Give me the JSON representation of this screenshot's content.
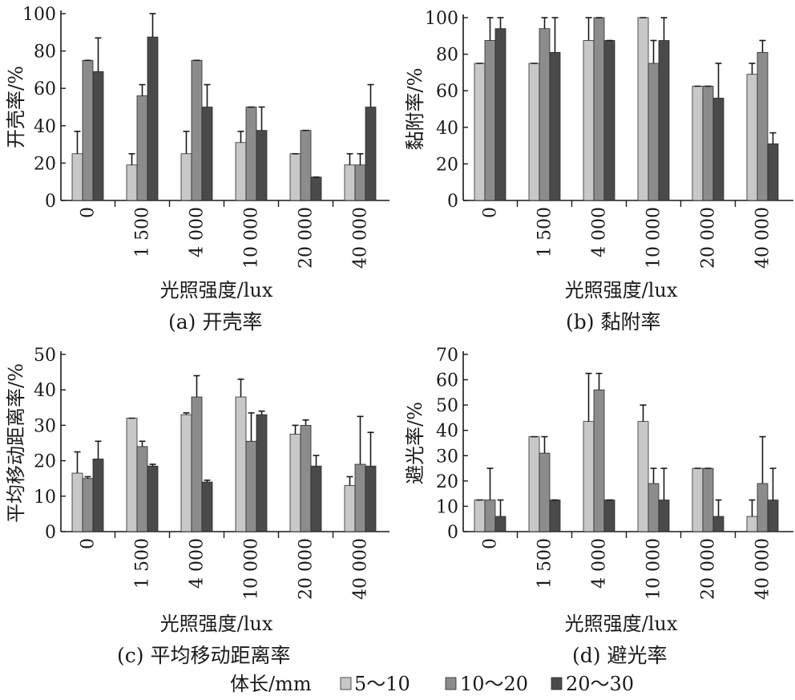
{
  "colors": [
    "#c8c8c8",
    "#8c8c8c",
    "#4a4a4a"
  ],
  "legend": {
    "title": "体长/mm",
    "items": [
      "5～10",
      "10～20",
      "20～30"
    ]
  },
  "chart_data": [
    {
      "type": "bar",
      "caption": "(a)  开壳率",
      "xlabel": "光照强度/lux",
      "ylabel": "开壳率/%",
      "categories": [
        "0",
        "1 500",
        "4 000",
        "10 000",
        "20 000",
        "40 000"
      ],
      "yticks": [
        "0",
        "20",
        "40",
        "60",
        "80",
        "100"
      ],
      "ylim": [
        0,
        100
      ],
      "series": [
        {
          "name": "5～10",
          "values": [
            25,
            19,
            25,
            31,
            25,
            19
          ],
          "errors": [
            12,
            6,
            12,
            6,
            0,
            6
          ]
        },
        {
          "name": "10～20",
          "values": [
            75,
            56,
            75,
            50,
            37.5,
            19
          ],
          "errors": [
            0,
            6,
            0,
            0,
            0,
            6
          ]
        },
        {
          "name": "20～30",
          "values": [
            69,
            87.5,
            50,
            37.5,
            12.5,
            50
          ],
          "errors": [
            18,
            12.5,
            12,
            12.5,
            0,
            12
          ]
        }
      ]
    },
    {
      "type": "bar",
      "caption": "(b)  黏附率",
      "xlabel": "光照强度/lux",
      "ylabel": "黏附率/%",
      "categories": [
        "0",
        "1 500",
        "4 000",
        "10 000",
        "20 000",
        "40 000"
      ],
      "yticks": [
        "0",
        "20",
        "40",
        "60",
        "80",
        "100"
      ],
      "ylim": [
        0,
        100
      ],
      "series": [
        {
          "name": "5～10",
          "values": [
            75,
            75,
            87.5,
            100,
            62.5,
            69
          ],
          "errors": [
            0,
            0,
            12.5,
            0,
            0,
            6
          ]
        },
        {
          "name": "10～20",
          "values": [
            87.5,
            94,
            100,
            75,
            62.5,
            81
          ],
          "errors": [
            12.5,
            6,
            0,
            12.5,
            0,
            6.5
          ]
        },
        {
          "name": "20～30",
          "values": [
            94,
            81,
            87.5,
            87.5,
            56,
            31
          ],
          "errors": [
            6,
            19,
            0,
            12.5,
            19,
            6
          ]
        }
      ]
    },
    {
      "type": "bar",
      "caption": "(c) 平均移动距离率",
      "xlabel": "光照强度/lux",
      "ylabel": "平均移动距离率/%",
      "categories": [
        "0",
        "1 500",
        "4 000",
        "10 000",
        "20 000",
        "40 000"
      ],
      "yticks": [
        "0",
        "10",
        "20",
        "30",
        "40",
        "50"
      ],
      "ylim": [
        0,
        50
      ],
      "series": [
        {
          "name": "5～10",
          "values": [
            16.5,
            32,
            33,
            38,
            27.5,
            13
          ],
          "errors": [
            6,
            0,
            0.5,
            5,
            2.5,
            2.5
          ]
        },
        {
          "name": "10～20",
          "values": [
            15,
            24,
            38,
            25.5,
            30,
            19
          ],
          "errors": [
            0.5,
            1.5,
            6,
            8,
            1.5,
            13.5
          ]
        },
        {
          "name": "20～30",
          "values": [
            20.5,
            18.5,
            14,
            33,
            18.5,
            18.5
          ],
          "errors": [
            5,
            0.5,
            0.5,
            1,
            3,
            9.5
          ]
        }
      ]
    },
    {
      "type": "bar",
      "caption": "(d) 避光率",
      "xlabel": "光照强度/lux",
      "ylabel": "避光率/%",
      "categories": [
        "0",
        "1 500",
        "4 000",
        "10 000",
        "20 000",
        "40 000"
      ],
      "yticks": [
        "0",
        "10",
        "20",
        "30",
        "40",
        "50",
        "60",
        "70"
      ],
      "ylim": [
        0,
        70
      ],
      "series": [
        {
          "name": "5～10",
          "values": [
            12.5,
            37.5,
            43.5,
            43.5,
            25,
            6
          ],
          "errors": [
            0,
            0,
            19,
            6.5,
            0,
            6.5
          ]
        },
        {
          "name": "10～20",
          "values": [
            12.5,
            31,
            56,
            19,
            25,
            19
          ],
          "errors": [
            12.5,
            6.5,
            6.5,
            6,
            0,
            18.5
          ]
        },
        {
          "name": "20～30",
          "values": [
            6,
            12.5,
            12.5,
            12.5,
            6,
            12.5
          ],
          "errors": [
            6.5,
            0,
            0,
            12.5,
            6.5,
            12.5
          ]
        }
      ]
    }
  ]
}
